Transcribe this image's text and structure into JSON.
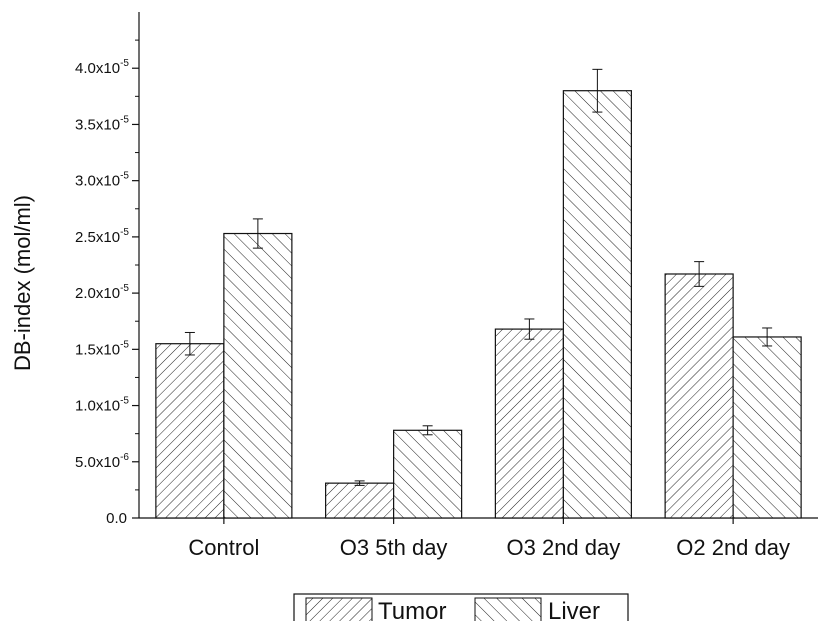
{
  "chart_data": {
    "type": "bar",
    "categories": [
      "Control",
      "O3 5th day",
      "O3 2nd day",
      "O2 2nd day"
    ],
    "series": [
      {
        "name": "Tumor",
        "values": [
          1.55e-05,
          3.1e-06,
          1.68e-05,
          2.17e-05
        ],
        "errors": [
          1e-06,
          2e-07,
          9e-07,
          1.1e-06
        ]
      },
      {
        "name": "Liver",
        "values": [
          2.53e-05,
          7.8e-06,
          3.8e-05,
          1.61e-05
        ],
        "errors": [
          1.3e-06,
          4e-07,
          1.9e-06,
          8e-07
        ]
      }
    ],
    "ylabel": "DB-index (mol/ml)",
    "xlabel": "",
    "ylim": [
      0,
      4.5e-05
    ],
    "yticks": [
      {
        "value": 0,
        "mantissa": "0.0",
        "exponent": ""
      },
      {
        "value": 5e-06,
        "mantissa": "5.0x10",
        "exponent": "-6"
      },
      {
        "value": 1e-05,
        "mantissa": "1.0x10",
        "exponent": "-5"
      },
      {
        "value": 1.5e-05,
        "mantissa": "1.5x10",
        "exponent": "-5"
      },
      {
        "value": 2e-05,
        "mantissa": "2.0x10",
        "exponent": "-5"
      },
      {
        "value": 2.5e-05,
        "mantissa": "2.5x10",
        "exponent": "-5"
      },
      {
        "value": 3e-05,
        "mantissa": "3.0x10",
        "exponent": "-5"
      },
      {
        "value": 3.5e-05,
        "mantissa": "3.5x10",
        "exponent": "-5"
      },
      {
        "value": 4e-05,
        "mantissa": "4.0x10",
        "exponent": "-5"
      }
    ],
    "grid": false,
    "legend_position": "bottom",
    "patterns": {
      "Tumor": "forward-diagonal-hatch",
      "Liver": "backward-diagonal-hatch"
    }
  }
}
